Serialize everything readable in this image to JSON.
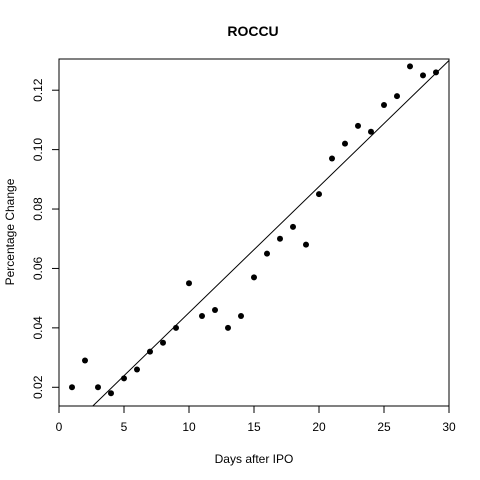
{
  "chart_data": {
    "type": "scatter",
    "title": "ROCCU",
    "xlabel": "Days after IPO",
    "ylabel": "Percentage Change",
    "xlim": [
      0,
      30
    ],
    "ylim": [
      0.0137,
      0.1305
    ],
    "x_ticks": [
      0,
      5,
      10,
      15,
      20,
      25,
      30
    ],
    "y_ticks": [
      0.02,
      0.04,
      0.06,
      0.08,
      0.1,
      0.12
    ],
    "y_tick_labels": [
      "0.02",
      "0.04",
      "0.06",
      "0.08",
      "0.10",
      "0.12"
    ],
    "grid": false,
    "legend": "none",
    "point_color": "#000000",
    "points": [
      {
        "x": 1,
        "y": 0.02
      },
      {
        "x": 2,
        "y": 0.029
      },
      {
        "x": 3,
        "y": 0.02
      },
      {
        "x": 4,
        "y": 0.018
      },
      {
        "x": 5,
        "y": 0.023
      },
      {
        "x": 6,
        "y": 0.026
      },
      {
        "x": 7,
        "y": 0.032
      },
      {
        "x": 8,
        "y": 0.035
      },
      {
        "x": 9,
        "y": 0.04
      },
      {
        "x": 10,
        "y": 0.055
      },
      {
        "x": 11,
        "y": 0.044
      },
      {
        "x": 12,
        "y": 0.046
      },
      {
        "x": 13,
        "y": 0.04
      },
      {
        "x": 14,
        "y": 0.044
      },
      {
        "x": 15,
        "y": 0.057
      },
      {
        "x": 16,
        "y": 0.065
      },
      {
        "x": 17,
        "y": 0.07
      },
      {
        "x": 18,
        "y": 0.074
      },
      {
        "x": 19,
        "y": 0.068
      },
      {
        "x": 20,
        "y": 0.085
      },
      {
        "x": 21,
        "y": 0.097
      },
      {
        "x": 22,
        "y": 0.102
      },
      {
        "x": 23,
        "y": 0.108
      },
      {
        "x": 24,
        "y": 0.106
      },
      {
        "x": 25,
        "y": 0.115
      },
      {
        "x": 26,
        "y": 0.118
      },
      {
        "x": 27,
        "y": 0.128
      },
      {
        "x": 28,
        "y": 0.125
      },
      {
        "x": 29,
        "y": 0.126
      }
    ],
    "fit_line": {
      "type": "linear",
      "start": {
        "x": 2.6,
        "y": 0.0137
      },
      "end": {
        "x": 30,
        "y": 0.13
      }
    }
  }
}
